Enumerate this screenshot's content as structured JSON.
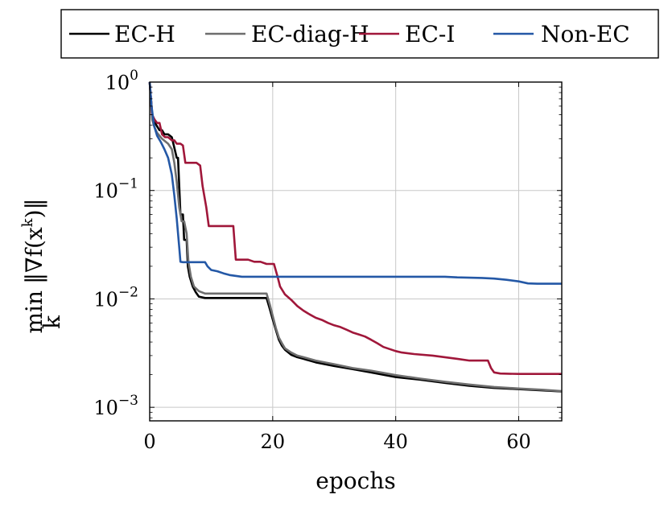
{
  "chart_data": {
    "type": "line",
    "xlabel": "epochs",
    "ylabel": "min_k ||∇f(x^k)||",
    "ylabel_parts": {
      "prefix": "min",
      "sub": "k",
      "expr": "‖∇f(x",
      "sup": "k",
      "close": ")‖"
    },
    "xlim": [
      0,
      67
    ],
    "ylim": [
      0.00075,
      1
    ],
    "yscale": "log",
    "grid": true,
    "legend_position": "top",
    "x_ticks": [
      0,
      20,
      40,
      60
    ],
    "x_tick_labels": [
      "0",
      "20",
      "40",
      "60"
    ],
    "y_ticks": [
      1,
      0.1,
      0.01,
      0.001
    ],
    "y_tick_labels": [
      {
        "base": "10",
        "exp": "0"
      },
      {
        "base": "10",
        "exp": "−1"
      },
      {
        "base": "10",
        "exp": "−2"
      },
      {
        "base": "10",
        "exp": "−3"
      }
    ],
    "series": [
      {
        "name": "EC-H",
        "color": "#000000",
        "x": [
          0,
          0.4,
          0.8,
          1.2,
          1.6,
          2.0,
          2.4,
          3.0,
          3.6,
          4.4,
          4.6,
          5.0,
          5.4,
          5.6,
          6.0,
          6.2,
          6.5,
          7.0,
          7.5,
          8.0,
          9.0,
          12,
          15,
          18,
          19,
          19.5,
          20,
          20.5,
          21,
          21.5,
          22,
          23,
          24,
          25,
          27,
          30,
          33,
          36,
          40,
          44,
          48,
          52,
          56,
          60,
          64,
          67
        ],
        "y": [
          1.0,
          0.5,
          0.43,
          0.39,
          0.36,
          0.36,
          0.33,
          0.33,
          0.31,
          0.2,
          0.2,
          0.06,
          0.06,
          0.035,
          0.035,
          0.02,
          0.016,
          0.013,
          0.0115,
          0.0105,
          0.0102,
          0.0102,
          0.0102,
          0.0102,
          0.0102,
          0.0082,
          0.0065,
          0.0052,
          0.0042,
          0.0037,
          0.0034,
          0.00305,
          0.0029,
          0.0028,
          0.0026,
          0.0024,
          0.00225,
          0.0021,
          0.0019,
          0.0018,
          0.00168,
          0.00158,
          0.00151,
          0.00147,
          0.00143,
          0.0014
        ]
      },
      {
        "name": "EC-diag-H",
        "color": "#6e6e6e",
        "x": [
          0,
          0.4,
          0.8,
          1.2,
          2.0,
          3.0,
          3.6,
          4.0,
          4.4,
          4.8,
          5.2,
          5.6,
          6.0,
          6.3,
          6.7,
          7.2,
          8.0,
          9.0,
          12,
          15,
          19,
          19.5,
          20,
          20.5,
          21,
          21.5,
          22,
          23,
          24,
          25,
          27,
          30,
          33,
          36,
          40,
          44,
          48,
          52,
          56,
          60,
          64,
          67
        ],
        "y": [
          1.0,
          0.45,
          0.38,
          0.34,
          0.3,
          0.27,
          0.24,
          0.18,
          0.12,
          0.07,
          0.052,
          0.052,
          0.04,
          0.022,
          0.016,
          0.013,
          0.0118,
          0.0112,
          0.0112,
          0.0112,
          0.0112,
          0.009,
          0.007,
          0.0054,
          0.0044,
          0.0039,
          0.0035,
          0.0032,
          0.003,
          0.0029,
          0.0027,
          0.0025,
          0.0023,
          0.00218,
          0.00198,
          0.00184,
          0.00172,
          0.00162,
          0.00154,
          0.00149,
          0.00145,
          0.00141
        ]
      },
      {
        "name": "EC-I",
        "color": "#a0173a",
        "x": [
          0,
          0.4,
          0.8,
          1.2,
          1.6,
          2.0,
          2.5,
          3.0,
          3.6,
          4.0,
          4.4,
          5.0,
          5.4,
          5.8,
          6.2,
          7.0,
          7.6,
          8.2,
          8.6,
          9.2,
          9.6,
          10.4,
          11,
          12,
          13.6,
          14,
          15,
          16,
          17,
          18,
          19,
          20.2,
          20.8,
          21.2,
          22,
          23,
          24,
          25,
          26,
          27,
          28,
          29,
          30,
          31,
          32,
          33,
          34,
          35,
          36,
          37,
          38,
          40,
          41,
          43,
          46,
          48,
          50,
          52,
          54,
          55,
          55.5,
          56,
          57,
          60,
          63,
          67
        ],
        "y": [
          1.0,
          0.5,
          0.45,
          0.42,
          0.42,
          0.33,
          0.31,
          0.31,
          0.29,
          0.29,
          0.27,
          0.27,
          0.26,
          0.18,
          0.18,
          0.18,
          0.18,
          0.17,
          0.11,
          0.07,
          0.047,
          0.047,
          0.047,
          0.047,
          0.047,
          0.023,
          0.023,
          0.023,
          0.022,
          0.022,
          0.021,
          0.021,
          0.016,
          0.013,
          0.011,
          0.0098,
          0.0086,
          0.0078,
          0.0072,
          0.0067,
          0.0064,
          0.006,
          0.0057,
          0.0055,
          0.0052,
          0.0049,
          0.0047,
          0.0045,
          0.0042,
          0.0039,
          0.0036,
          0.0033,
          0.0032,
          0.0031,
          0.003,
          0.0029,
          0.0028,
          0.0027,
          0.0027,
          0.0027,
          0.0023,
          0.0021,
          0.00205,
          0.00203,
          0.00203,
          0.00203
        ]
      },
      {
        "name": "Non-EC",
        "color": "#2458a6",
        "x": [
          0,
          0.3,
          0.7,
          1.2,
          1.8,
          2.4,
          3.0,
          3.6,
          4.0,
          4.4,
          4.8,
          5.0,
          5.4,
          6.0,
          8.0,
          9.0,
          9.4,
          10.0,
          11,
          12,
          13,
          15,
          17,
          20,
          25,
          30,
          35,
          40,
          45,
          48,
          50,
          54,
          56,
          58,
          60,
          61.5,
          63,
          67
        ],
        "y": [
          1.0,
          0.6,
          0.4,
          0.32,
          0.28,
          0.24,
          0.2,
          0.14,
          0.09,
          0.055,
          0.03,
          0.022,
          0.0218,
          0.0218,
          0.0218,
          0.0218,
          0.02,
          0.0185,
          0.018,
          0.0172,
          0.0166,
          0.016,
          0.016,
          0.016,
          0.016,
          0.016,
          0.016,
          0.016,
          0.016,
          0.016,
          0.0158,
          0.0156,
          0.0154,
          0.015,
          0.0145,
          0.0139,
          0.0138,
          0.0138
        ]
      }
    ]
  }
}
